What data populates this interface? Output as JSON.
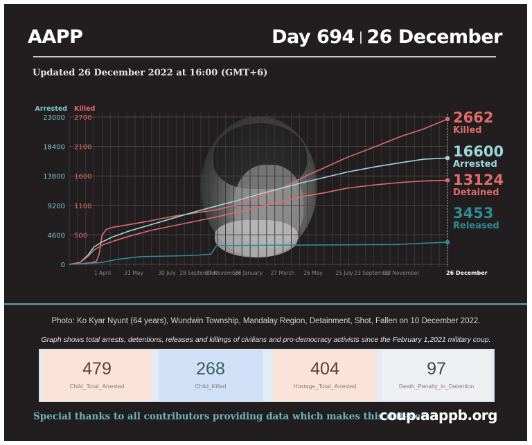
{
  "header": {
    "brand": "AAPP",
    "day_label": "Day 694",
    "separator": "|",
    "date_label": "26 December",
    "updated": "Updated 26 December 2022 at 16:00 (GMT+6)"
  },
  "chart_data": {
    "type": "line",
    "title": "",
    "left_axis": {
      "label": "Arrested",
      "ticks": [
        "0",
        "4600",
        "9200",
        "13800",
        "18400",
        "23000"
      ],
      "range": [
        0,
        23000
      ],
      "color": "#7fc4cc"
    },
    "right_axis": {
      "label": "Killed",
      "ticks": [
        "500",
        "1100",
        "1600",
        "2100",
        "2700"
      ],
      "color": "#e06b6b"
    },
    "x_ticks": [
      "1 April",
      "31 May",
      "30 July",
      "28 September",
      "27 November",
      "26 January",
      "27 March",
      "26 May",
      "25 July",
      "23 September",
      "22 November",
      "26 December"
    ],
    "x_range_days": [
      0,
      694
    ],
    "grid": true,
    "series": [
      {
        "name": "Killed",
        "axis": "right",
        "color": "#e06b6b",
        "final_value": 2662,
        "points": [
          [
            0,
            0
          ],
          [
            20,
            10
          ],
          [
            40,
            30
          ],
          [
            50,
            60
          ],
          [
            55,
            200
          ],
          [
            60,
            530
          ],
          [
            68,
            640
          ],
          [
            80,
            680
          ],
          [
            110,
            730
          ],
          [
            150,
            800
          ],
          [
            190,
            880
          ],
          [
            230,
            940
          ],
          [
            270,
            1000
          ],
          [
            310,
            1100
          ],
          [
            350,
            1250
          ],
          [
            390,
            1400
          ],
          [
            430,
            1600
          ],
          [
            470,
            1780
          ],
          [
            510,
            1960
          ],
          [
            560,
            2150
          ],
          [
            610,
            2350
          ],
          [
            650,
            2480
          ],
          [
            694,
            2662
          ]
        ]
      },
      {
        "name": "Arrested",
        "axis": "left",
        "color": "#9fd6dc",
        "final_value": 16600,
        "points": [
          [
            0,
            0
          ],
          [
            20,
            300
          ],
          [
            35,
            1500
          ],
          [
            45,
            2700
          ],
          [
            60,
            3500
          ],
          [
            80,
            4300
          ],
          [
            110,
            5200
          ],
          [
            150,
            6200
          ],
          [
            190,
            7200
          ],
          [
            230,
            8200
          ],
          [
            270,
            9100
          ],
          [
            310,
            10000
          ],
          [
            350,
            11000
          ],
          [
            390,
            11900
          ],
          [
            430,
            12800
          ],
          [
            470,
            13600
          ],
          [
            510,
            14400
          ],
          [
            560,
            15200
          ],
          [
            610,
            15900
          ],
          [
            650,
            16400
          ],
          [
            694,
            16600
          ]
        ]
      },
      {
        "name": "Detained",
        "axis": "left",
        "color": "#e06b6b",
        "final_value": 13124,
        "points": [
          [
            0,
            0
          ],
          [
            20,
            300
          ],
          [
            35,
            1300
          ],
          [
            45,
            2200
          ],
          [
            60,
            3000
          ],
          [
            80,
            3600
          ],
          [
            110,
            4400
          ],
          [
            150,
            5300
          ],
          [
            190,
            6000
          ],
          [
            230,
            6700
          ],
          [
            270,
            7400
          ],
          [
            310,
            8200
          ],
          [
            350,
            9000
          ],
          [
            390,
            9800
          ],
          [
            430,
            10600
          ],
          [
            470,
            11200
          ],
          [
            510,
            11900
          ],
          [
            560,
            12400
          ],
          [
            610,
            12800
          ],
          [
            650,
            13000
          ],
          [
            694,
            13124
          ]
        ]
      },
      {
        "name": "Released",
        "axis": "left",
        "color": "#2f8b96",
        "final_value": 3453,
        "points": [
          [
            0,
            0
          ],
          [
            30,
            100
          ],
          [
            60,
            300
          ],
          [
            90,
            800
          ],
          [
            130,
            1200
          ],
          [
            180,
            1300
          ],
          [
            230,
            1400
          ],
          [
            260,
            1600
          ],
          [
            270,
            2900
          ],
          [
            310,
            2950
          ],
          [
            400,
            3000
          ],
          [
            500,
            3050
          ],
          [
            600,
            3100
          ],
          [
            650,
            3300
          ],
          [
            694,
            3453
          ]
        ]
      }
    ],
    "end_labels": [
      {
        "value": "2662",
        "label": "Killed",
        "color": "#e06b6b"
      },
      {
        "value": "16600",
        "label": "Arrested",
        "color": "#9fd6dc"
      },
      {
        "value": "13124",
        "label": "Detained",
        "color": "#e06b6b"
      },
      {
        "value": "3453",
        "label": "Released",
        "color": "#2f8b96"
      }
    ]
  },
  "captions": {
    "photo": "Photo: Ko Kyar Nyunt (64 years), Wundwin Township, Mandalay Region, Detainment, Shot, Fallen on 10 December 2022.",
    "graph": "Graph shows total arrests, detentions, releases and killings of civilians and pro-democracy activists since the February 1,2021 military coup."
  },
  "stat_cards": [
    {
      "value": "479",
      "label": "Child_Total_Arrested",
      "bg": "#fbe3da",
      "text": "#5a3f3c"
    },
    {
      "value": "268",
      "label": "Child_Killed",
      "bg": "#cfe0f7",
      "text": "#3e5c57"
    },
    {
      "value": "404",
      "label": "Hostage_Total_Arrested",
      "bg": "#fbe3da",
      "text": "#5a3f3c"
    },
    {
      "value": "97",
      "label": "Death_Penalty_in_Detention",
      "bg": "#eeeff2",
      "text": "#444444"
    }
  ],
  "footer": {
    "thanks": "Special thanks to all contributors providing data which makes this dataset.",
    "site": "coup.aappb.org"
  }
}
